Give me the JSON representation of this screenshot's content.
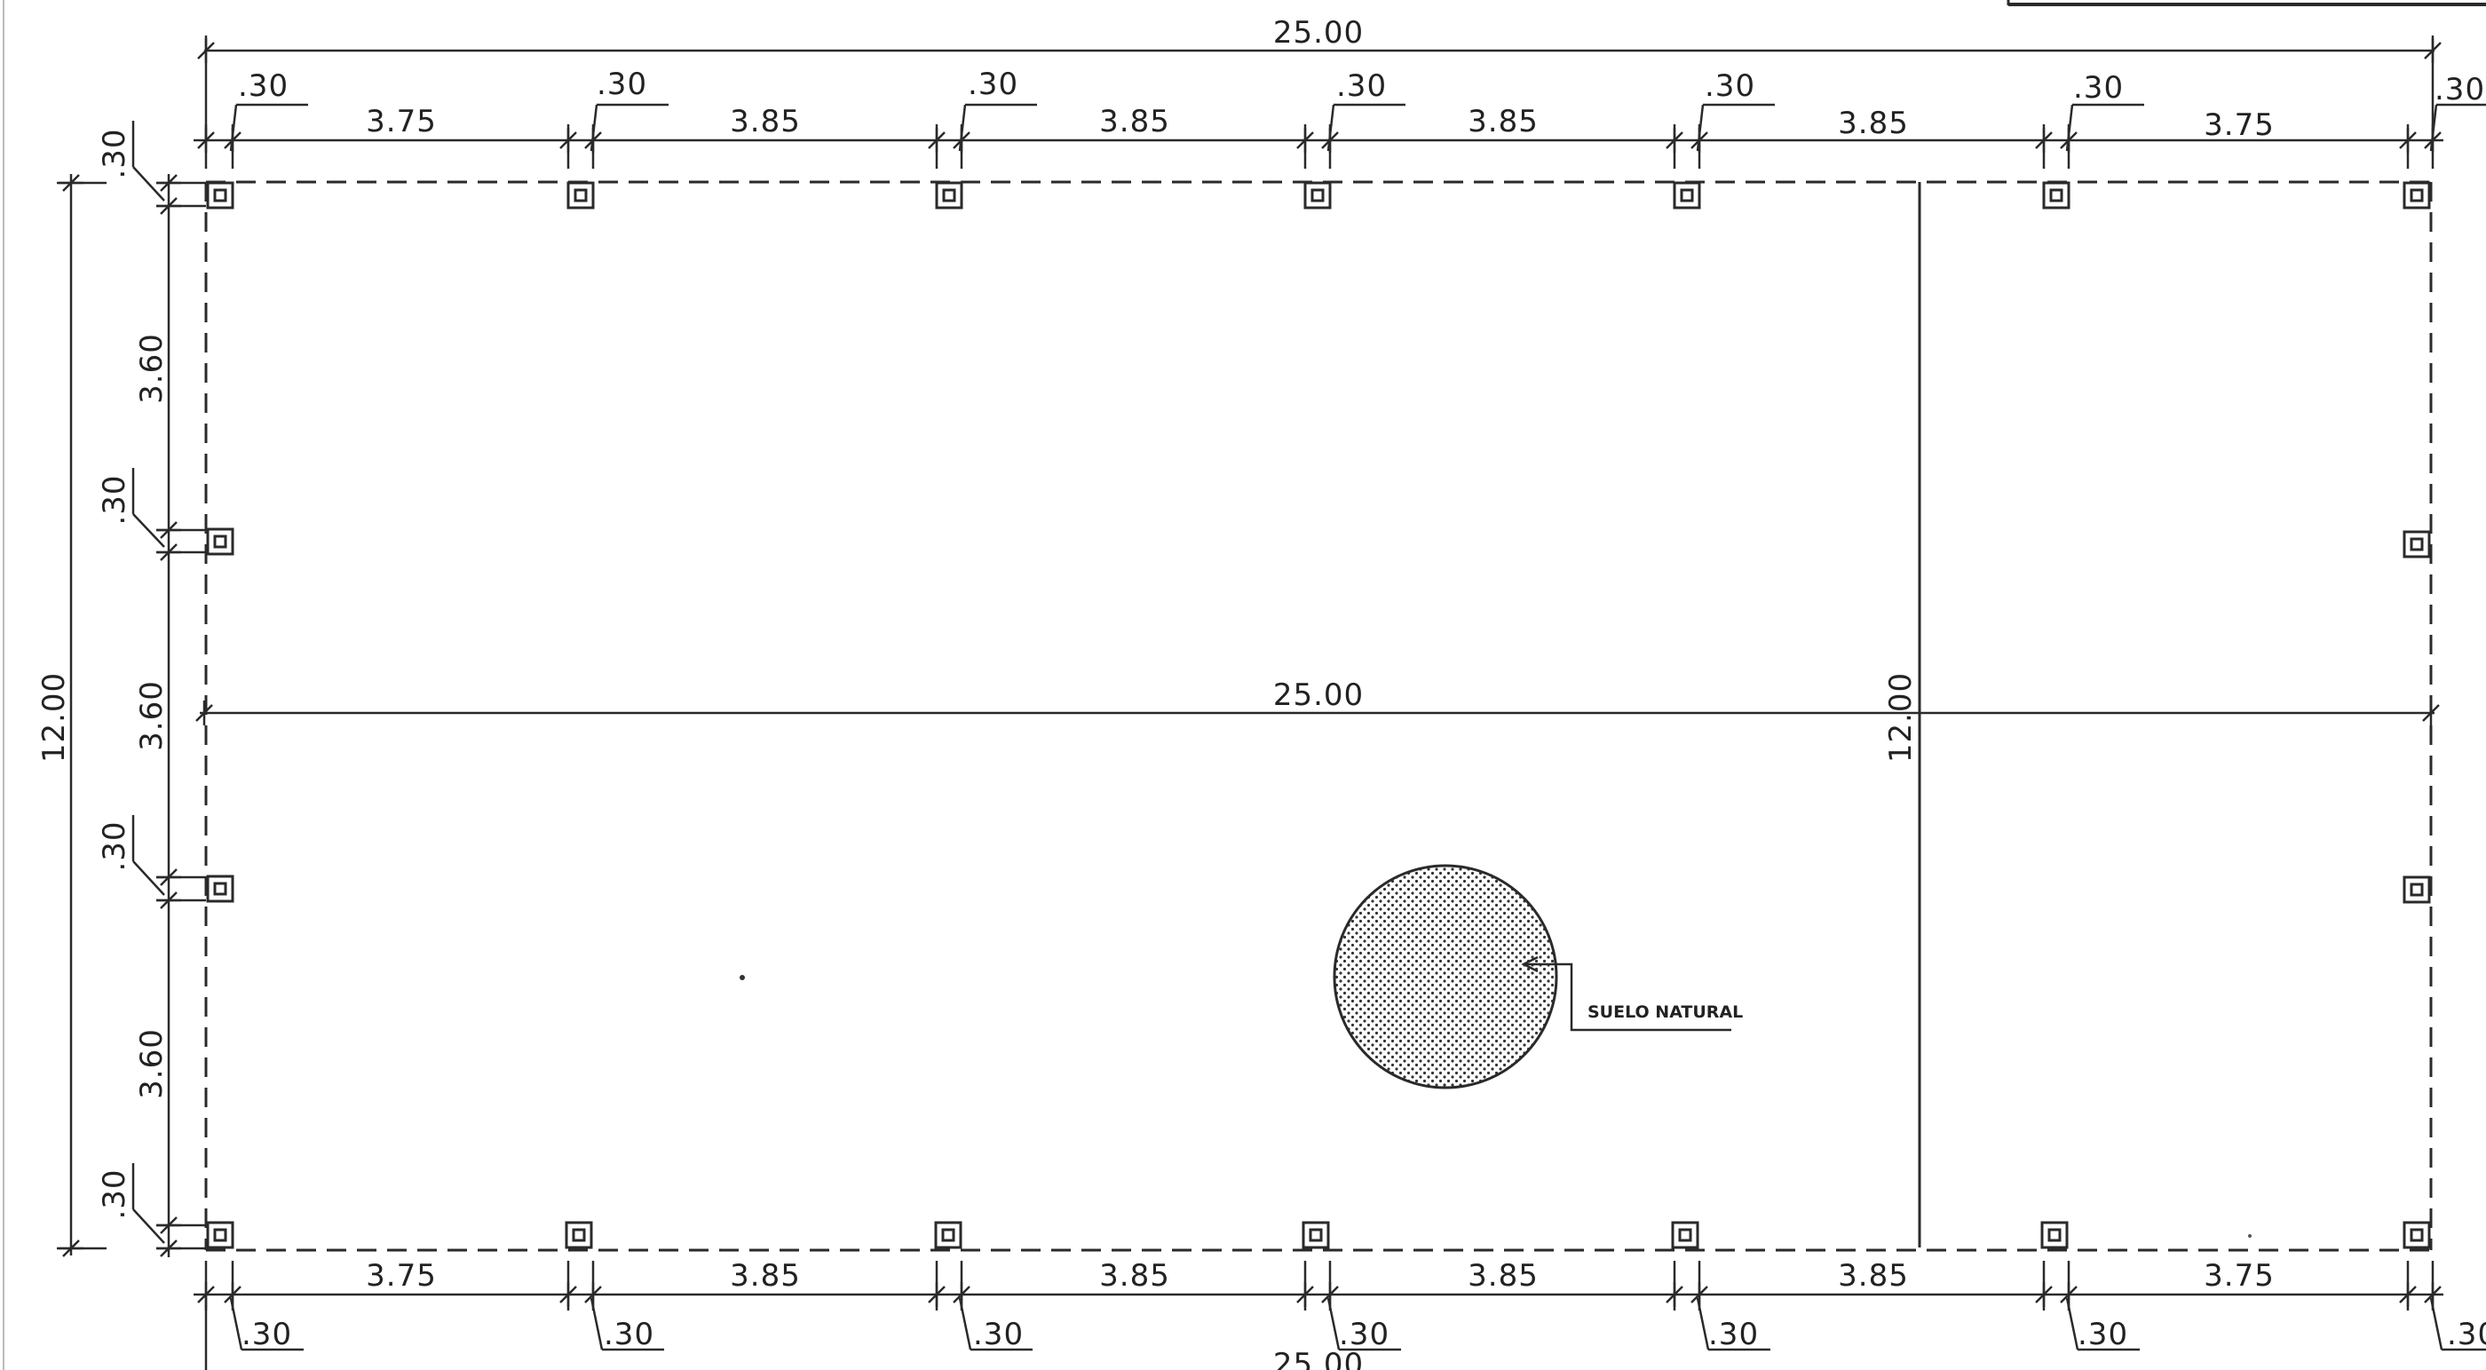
{
  "plan": {
    "overall_width_label": "25.00",
    "overall_height_label": "12.00",
    "column_offset_label": ".30",
    "bay_labels_top": [
      "3.75",
      "3.85",
      "3.85",
      "3.85",
      "3.85",
      "3.75"
    ],
    "bay_labels_bottom": [
      "3.75",
      "3.85",
      "3.85",
      "3.85",
      "3.85",
      "3.75"
    ],
    "bay_labels_left": [
      "3.60",
      "3.60",
      "3.60"
    ],
    "interior_width_label": "25.00",
    "interior_height_label": "12.00",
    "soil_label": "SUELO NATURAL"
  },
  "colors": {
    "line": "#2a2a2a",
    "paper": "#ffffff",
    "hatch": "#333333"
  }
}
